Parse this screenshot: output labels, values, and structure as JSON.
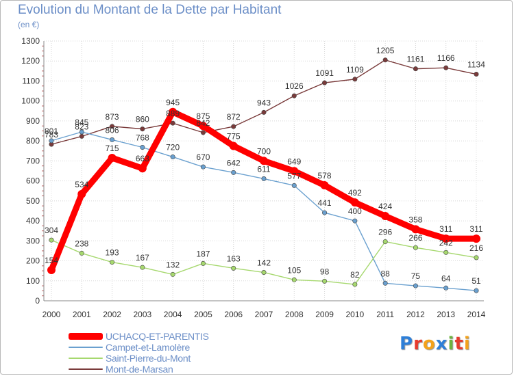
{
  "title": "Evolution du Montant de la Dette par Habitant",
  "subtitle": "(en €)",
  "logo": {
    "text": "Proxiti",
    "colors": [
      "#2e7fd8",
      "#e63b2e",
      "#f3a21b",
      "#2e7fd8",
      "#6db33f",
      "#e63b2e",
      "#f3a21b"
    ]
  },
  "chart_data": {
    "type": "line",
    "title": "Evolution du Montant de la Dette par Habitant",
    "ylabel": "(en €)",
    "xlabel": "",
    "ylim": [
      0,
      1300
    ],
    "yticks": [
      0,
      100,
      200,
      300,
      400,
      500,
      600,
      700,
      800,
      900,
      1000,
      1100,
      1200,
      1300
    ],
    "categories": [
      "2000",
      "2001",
      "2002",
      "2003",
      "2004",
      "2005",
      "2006",
      "2007",
      "2008",
      "2009",
      "2010",
      "2011",
      "2012",
      "2013",
      "2014"
    ],
    "grid": true,
    "legend_position": "bottom-left",
    "series": [
      {
        "name": "UCHACQ-ET-PARENTIS",
        "color": "#ff0000",
        "values": [
          154,
          534,
          715,
          663,
          945,
          875,
          775,
          700,
          649,
          578,
          492,
          424,
          358,
          311,
          311
        ]
      },
      {
        "name": "Campet-et-Lamolère",
        "color": "#6aa0cf",
        "values": [
          801,
          845,
          806,
          768,
          720,
          670,
          642,
          611,
          577,
          441,
          400,
          88,
          75,
          64,
          51
        ]
      },
      {
        "name": "Saint-Pierre-du-Mont",
        "color": "#a6d86e",
        "values": [
          304,
          238,
          193,
          167,
          132,
          187,
          163,
          142,
          105,
          98,
          82,
          296,
          266,
          242,
          216
        ]
      },
      {
        "name": "Mont-de-Marsan",
        "color": "#7a3b3b",
        "values": [
          783,
          823,
          873,
          860,
          889,
          842,
          872,
          943,
          1026,
          1091,
          1109,
          1205,
          1161,
          1166,
          1134
        ]
      }
    ]
  }
}
